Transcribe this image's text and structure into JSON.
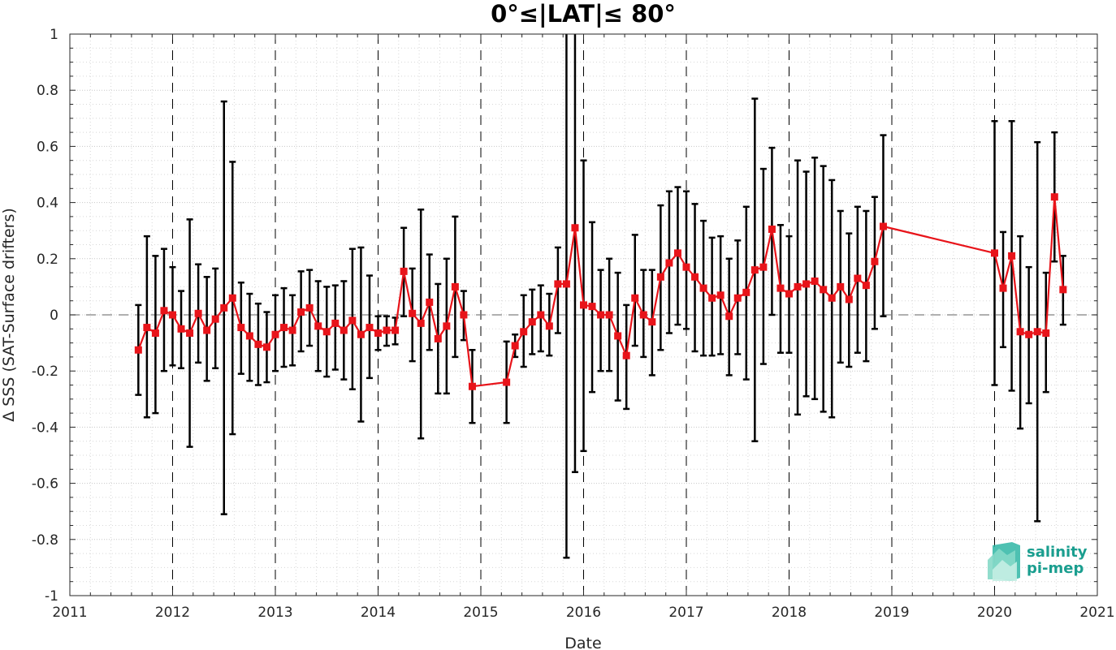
{
  "chart_data": {
    "type": "line",
    "title": "0°≤|LAT|≤ 80°",
    "xlabel": "Date",
    "ylabel": "Δ SSS (SAT-Surface drifters)",
    "xlim": [
      2011,
      2021
    ],
    "ylim": [
      -1,
      1
    ],
    "x_ticks": [
      "2011",
      "2012",
      "2013",
      "2014",
      "2015",
      "2016",
      "2017",
      "2018",
      "2019",
      "2020",
      "2021"
    ],
    "y_ticks": [
      "-1",
      "-0.8",
      "-0.6",
      "-0.4",
      "-0.2",
      "0",
      "0.2",
      "0.4",
      "0.6",
      "0.8",
      "1"
    ],
    "grid": "minor dotted, dashed vertical lines at each year, dashed horizontal line at 0",
    "colors": {
      "line": "#e8141a",
      "marker": "#e8141a",
      "errorbar": "#000000",
      "zero_line": "#808080",
      "year_line": "#000000"
    },
    "series": [
      {
        "x": [
          "2011-09",
          "2011-10",
          "2011-11",
          "2011-12",
          "2012-01",
          "2012-02",
          "2012-03",
          "2012-04",
          "2012-05",
          "2012-06",
          "2012-07",
          "2012-08",
          "2012-09",
          "2012-10",
          "2012-11",
          "2012-12",
          "2013-01",
          "2013-02",
          "2013-03",
          "2013-04",
          "2013-05",
          "2013-06",
          "2013-07",
          "2013-08",
          "2013-09",
          "2013-10",
          "2013-11",
          "2013-12",
          "2014-01",
          "2014-02",
          "2014-03",
          "2014-04",
          "2014-05",
          "2014-06",
          "2014-07",
          "2014-08",
          "2014-09",
          "2014-10",
          "2014-11",
          "2014-12",
          "2015-04",
          "2015-05",
          "2015-06",
          "2015-07",
          "2015-08",
          "2015-09",
          "2015-10",
          "2015-11",
          "2015-12",
          "2016-01",
          "2016-02",
          "2016-03",
          "2016-04",
          "2016-05",
          "2016-06",
          "2016-07",
          "2016-08",
          "2016-09",
          "2016-10",
          "2016-11",
          "2016-12",
          "2017-01",
          "2017-02",
          "2017-03",
          "2017-04",
          "2017-05",
          "2017-06",
          "2017-07",
          "2017-08",
          "2017-09",
          "2017-10",
          "2017-11",
          "2017-12",
          "2018-01",
          "2018-02",
          "2018-03",
          "2018-04",
          "2018-05",
          "2018-06",
          "2018-07",
          "2018-08",
          "2018-09",
          "2018-10",
          "2018-11",
          "2018-12",
          "2020-01",
          "2020-02",
          "2020-03",
          "2020-04",
          "2020-05",
          "2020-06",
          "2020-07",
          "2020-08",
          "2020-09"
        ],
        "y": [
          -0.125,
          -0.045,
          -0.065,
          0.015,
          0.0,
          -0.05,
          -0.065,
          0.005,
          -0.055,
          -0.015,
          0.025,
          0.06,
          -0.045,
          -0.075,
          -0.105,
          -0.115,
          -0.07,
          -0.045,
          -0.055,
          0.01,
          0.025,
          -0.04,
          -0.06,
          -0.03,
          -0.055,
          -0.02,
          -0.07,
          -0.045,
          -0.065,
          -0.055,
          -0.055,
          0.155,
          0.005,
          -0.03,
          0.045,
          -0.085,
          -0.04,
          0.1,
          0.0,
          -0.255,
          -0.24,
          -0.11,
          -0.06,
          -0.025,
          0.0,
          -0.04,
          0.11,
          0.11,
          0.31,
          0.035,
          0.03,
          0.0,
          0.0,
          -0.075,
          -0.145,
          0.06,
          0.0,
          -0.025,
          0.135,
          0.185,
          0.22,
          0.17,
          0.135,
          0.095,
          0.06,
          0.07,
          -0.005,
          0.06,
          0.08,
          0.16,
          0.17,
          0.305,
          0.095,
          0.075,
          0.1,
          0.11,
          0.12,
          0.09,
          0.06,
          0.1,
          0.055,
          0.13,
          0.105,
          0.19,
          0.315,
          0.22,
          0.095,
          0.21,
          -0.06,
          -0.07,
          -0.06,
          -0.065,
          0.42,
          0.09
        ],
        "err_lower": [
          -0.285,
          -0.365,
          -0.35,
          -0.2,
          -0.18,
          -0.19,
          -0.47,
          -0.17,
          -0.235,
          -0.19,
          -0.71,
          -0.425,
          -0.21,
          -0.235,
          -0.25,
          -0.24,
          -0.2,
          -0.185,
          -0.18,
          -0.13,
          -0.11,
          -0.2,
          -0.22,
          -0.195,
          -0.23,
          -0.265,
          -0.38,
          -0.225,
          -0.125,
          -0.11,
          -0.105,
          -0.005,
          -0.165,
          -0.44,
          -0.125,
          -0.28,
          -0.28,
          -0.15,
          -0.09,
          -0.385,
          -0.385,
          -0.15,
          -0.185,
          -0.14,
          -0.13,
          -0.145,
          -0.065,
          -0.865,
          -0.56,
          -0.485,
          -0.275,
          -0.2,
          -0.2,
          -0.305,
          -0.335,
          -0.11,
          -0.15,
          -0.215,
          -0.125,
          -0.065,
          -0.035,
          -0.05,
          -0.13,
          -0.145,
          -0.145,
          -0.14,
          -0.215,
          -0.14,
          -0.23,
          -0.45,
          -0.175,
          0.0,
          -0.135,
          -0.135,
          -0.355,
          -0.29,
          -0.3,
          -0.345,
          -0.365,
          -0.17,
          -0.185,
          -0.135,
          -0.165,
          -0.05,
          -0.005,
          -0.25,
          -0.115,
          -0.27,
          -0.405,
          -0.315,
          -0.735,
          -0.275,
          0.19,
          -0.035
        ],
        "err_upper": [
          0.035,
          0.28,
          0.21,
          0.235,
          0.17,
          0.085,
          0.34,
          0.18,
          0.135,
          0.165,
          0.76,
          0.545,
          0.115,
          0.075,
          0.04,
          0.01,
          0.07,
          0.095,
          0.07,
          0.155,
          0.16,
          0.12,
          0.1,
          0.105,
          0.12,
          0.235,
          0.24,
          0.14,
          -0.005,
          -0.005,
          -0.01,
          0.31,
          0.165,
          0.375,
          0.215,
          0.11,
          0.2,
          0.35,
          0.085,
          -0.125,
          -0.095,
          -0.07,
          0.07,
          0.09,
          0.105,
          0.075,
          0.24,
          1.1,
          1.1,
          0.55,
          0.33,
          0.16,
          0.2,
          0.15,
          0.035,
          0.285,
          0.16,
          0.16,
          0.39,
          0.44,
          0.455,
          0.44,
          0.395,
          0.335,
          0.275,
          0.28,
          0.2,
          0.265,
          0.385,
          0.77,
          0.52,
          0.595,
          0.32,
          0.28,
          0.55,
          0.51,
          0.56,
          0.53,
          0.48,
          0.37,
          0.29,
          0.385,
          0.37,
          0.42,
          0.64,
          0.69,
          0.295,
          0.69,
          0.28,
          0.17,
          0.615,
          0.15,
          0.65,
          0.21
        ]
      }
    ]
  },
  "logo": {
    "line1": "salinity",
    "line2": "pi-mep",
    "color": "#1a9e8f"
  }
}
